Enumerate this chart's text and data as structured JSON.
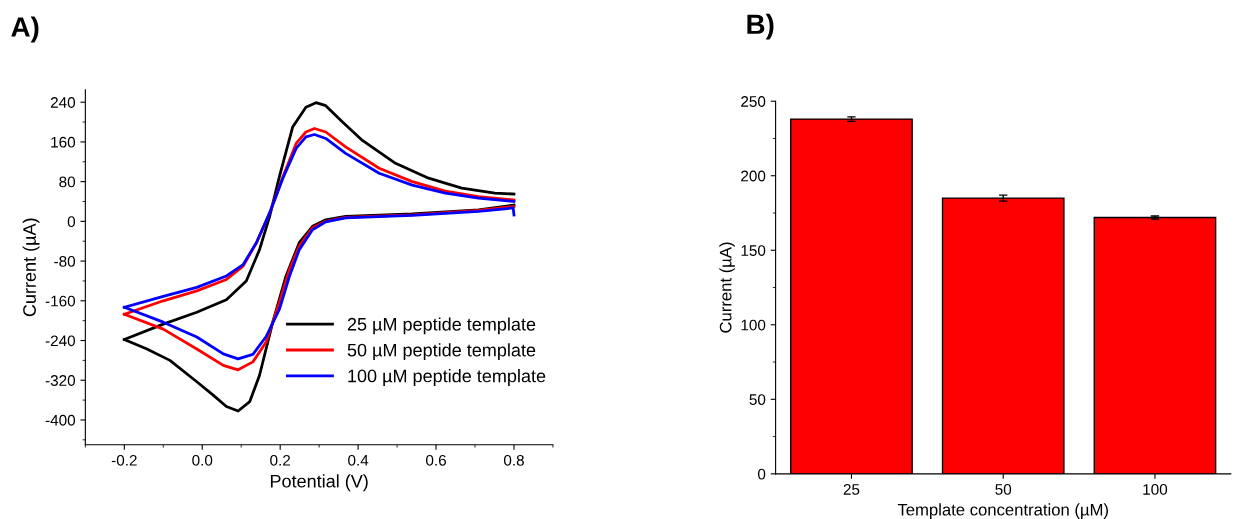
{
  "chart_data": [
    {
      "type": "line",
      "title": "A)",
      "xlabel": "Potential (V)",
      "ylabel": "Current (µA)",
      "xlim": [
        -0.3,
        0.9
      ],
      "xticks": [
        -0.2,
        {
          "value": 0,
          "label": "0.0"
        },
        0.2,
        0.4,
        0.6,
        0.8
      ],
      "ylim": [
        -450,
        265
      ],
      "yticks": [
        -400,
        -320,
        -240,
        -160,
        -80,
        0,
        80,
        160,
        240
      ],
      "grid": false,
      "legend": "bottom right",
      "marker": "none",
      "line_style": "solid",
      "series": [
        {
          "name": "25 µM peptide template",
          "color": "#000000",
          "x": [
            -0.2,
            -0.1,
            -0.014,
            0.062,
            0.113,
            0.147,
            0.173,
            0.198,
            0.232,
            0.266,
            0.292,
            0.317,
            0.36,
            0.411,
            0.496,
            0.581,
            0.666,
            0.751,
            0.8
          ],
          "values": [
            -238,
            -207,
            -183,
            -158,
            -120,
            -57,
            10,
            90,
            190,
            230,
            239,
            233,
            200,
            163,
            117,
            87,
            67,
            57,
            55
          ]
        },
        {
          "color": "#000000",
          "x": [
            -0.2,
            -0.142,
            -0.083,
            -0.014,
            0.028,
            0.062,
            0.092,
            0.122,
            0.147,
            0.181,
            0.215,
            0.249,
            0.283,
            0.317,
            0.368,
            0.539,
            0.709,
            0.8
          ],
          "values": [
            -238,
            -257,
            -280,
            -323,
            -350,
            -373,
            -382,
            -363,
            -310,
            -203,
            -110,
            -43,
            -10,
            3,
            10,
            15,
            23,
            33
          ]
        },
        {
          "name": "50 µM peptide template",
          "color": "#ff0000",
          "x": [
            -0.2,
            -0.1,
            -0.014,
            0.062,
            0.105,
            0.139,
            0.173,
            0.207,
            0.241,
            0.266,
            0.288,
            0.317,
            0.368,
            0.454,
            0.539,
            0.624,
            0.709,
            0.8
          ],
          "values": [
            -187,
            -160,
            -140,
            -117,
            -90,
            -43,
            17,
            90,
            157,
            180,
            187,
            180,
            150,
            107,
            80,
            61,
            50,
            43
          ]
        },
        {
          "color": "#ff0000",
          "x": [
            -0.2,
            -0.1,
            -0.014,
            0.054,
            0.092,
            0.13,
            0.164,
            0.198,
            0.224,
            0.249,
            0.283,
            0.317,
            0.368,
            0.539,
            0.709,
            0.8
          ],
          "values": [
            -187,
            -217,
            -257,
            -290,
            -299,
            -283,
            -243,
            -163,
            -97,
            -50,
            -13,
            0,
            8,
            13,
            22,
            30
          ]
        },
        {
          "name": "100 µM peptide template",
          "color": "#0000ff",
          "x": [
            -0.2,
            -0.1,
            -0.014,
            0.062,
            0.105,
            0.139,
            0.173,
            0.207,
            0.241,
            0.266,
            0.288,
            0.317,
            0.368,
            0.454,
            0.539,
            0.624,
            0.709,
            0.8
          ],
          "values": [
            -173,
            -151,
            -133,
            -110,
            -87,
            -43,
            17,
            87,
            147,
            170,
            175,
            167,
            137,
            97,
            73,
            57,
            47,
            40
          ]
        },
        {
          "color": "#0000ff",
          "x": [
            -0.2,
            -0.1,
            -0.014,
            0.054,
            0.092,
            0.13,
            0.164,
            0.198,
            0.224,
            0.249,
            0.283,
            0.317,
            0.368,
            0.539,
            0.709,
            0.798,
            0.8
          ],
          "values": [
            -173,
            -203,
            -233,
            -267,
            -277,
            -268,
            -232,
            -177,
            -110,
            -57,
            -17,
            -1,
            7,
            12,
            20,
            27,
            13
          ]
        }
      ]
    },
    {
      "type": "bar",
      "title": "B)",
      "xlabel": "Template concentration (µM)",
      "ylabel": "Current (µA)",
      "categories": [
        "25",
        "50",
        "100"
      ],
      "ylim": [
        0,
        250
      ],
      "yticks": [
        0,
        50,
        100,
        150,
        200,
        250
      ],
      "grid": false,
      "legend": false,
      "series": [
        {
          "color": "#ff0000",
          "values": [
            238,
            185,
            172
          ],
          "errors": [
            1.5,
            2,
            1
          ]
        }
      ]
    }
  ]
}
